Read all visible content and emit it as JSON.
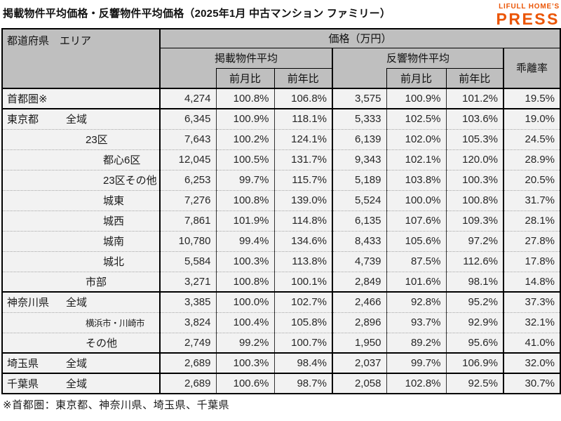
{
  "page": {
    "title": "掲載物件平均価格・反響物件平均価格（2025年1月 中古マンション ファミリー）",
    "footnote": "※首都圏：東京都、神奈川県、埼玉県、千葉県"
  },
  "logo": {
    "line1": "LIFULL HOME’S",
    "line2": "PRESS",
    "color": "#eb5505"
  },
  "colors": {
    "header_bg": "#bfbfbf",
    "row_bg": "#f2f2f2",
    "border": "#000000",
    "accent": "#eb5505"
  },
  "table": {
    "header": {
      "area_label": "都道府県　エリア",
      "price_group": "価格（万円）",
      "listed_group": "掲載物件平均",
      "inquiry_group": "反響物件平均",
      "divergence": "乖離率",
      "mom": "前月比",
      "yoy": "前年比"
    },
    "rows": [
      {
        "pref": "首都圏※",
        "area": "",
        "indent": 1,
        "group_start": true,
        "small": false,
        "listed": "4,274",
        "listed_mom": "100.8%",
        "listed_yoy": "106.8%",
        "inquiry": "3,575",
        "inquiry_mom": "100.9%",
        "inquiry_yoy": "101.2%",
        "divergence": "19.5%"
      },
      {
        "pref": "東京都",
        "area": "全域",
        "indent": 1,
        "group_start": true,
        "small": false,
        "listed": "6,345",
        "listed_mom": "100.9%",
        "listed_yoy": "118.1%",
        "inquiry": "5,333",
        "inquiry_mom": "102.5%",
        "inquiry_yoy": "103.6%",
        "divergence": "19.0%"
      },
      {
        "pref": "",
        "area": "23区",
        "indent": 2,
        "group_start": false,
        "small": false,
        "listed": "7,643",
        "listed_mom": "100.2%",
        "listed_yoy": "124.1%",
        "inquiry": "6,139",
        "inquiry_mom": "102.0%",
        "inquiry_yoy": "105.3%",
        "divergence": "24.5%"
      },
      {
        "pref": "",
        "area": "都心6区",
        "indent": 3,
        "group_start": false,
        "small": false,
        "listed": "12,045",
        "listed_mom": "100.5%",
        "listed_yoy": "131.7%",
        "inquiry": "9,343",
        "inquiry_mom": "102.1%",
        "inquiry_yoy": "120.0%",
        "divergence": "28.9%"
      },
      {
        "pref": "",
        "area": "23区その他",
        "indent": 3,
        "group_start": false,
        "small": false,
        "listed": "6,253",
        "listed_mom": "99.7%",
        "listed_yoy": "115.7%",
        "inquiry": "5,189",
        "inquiry_mom": "103.8%",
        "inquiry_yoy": "100.3%",
        "divergence": "20.5%"
      },
      {
        "pref": "",
        "area": "城東",
        "indent": 3,
        "group_start": false,
        "small": false,
        "listed": "7,276",
        "listed_mom": "100.8%",
        "listed_yoy": "139.0%",
        "inquiry": "5,524",
        "inquiry_mom": "100.0%",
        "inquiry_yoy": "100.8%",
        "divergence": "31.7%"
      },
      {
        "pref": "",
        "area": "城西",
        "indent": 3,
        "group_start": false,
        "small": false,
        "listed": "7,861",
        "listed_mom": "101.9%",
        "listed_yoy": "114.8%",
        "inquiry": "6,135",
        "inquiry_mom": "107.6%",
        "inquiry_yoy": "109.3%",
        "divergence": "28.1%"
      },
      {
        "pref": "",
        "area": "城南",
        "indent": 3,
        "group_start": false,
        "small": false,
        "listed": "10,780",
        "listed_mom": "99.4%",
        "listed_yoy": "134.6%",
        "inquiry": "8,433",
        "inquiry_mom": "105.6%",
        "inquiry_yoy": "97.2%",
        "divergence": "27.8%"
      },
      {
        "pref": "",
        "area": "城北",
        "indent": 3,
        "group_start": false,
        "small": false,
        "listed": "5,584",
        "listed_mom": "100.3%",
        "listed_yoy": "113.8%",
        "inquiry": "4,739",
        "inquiry_mom": "87.5%",
        "inquiry_yoy": "112.6%",
        "divergence": "17.8%"
      },
      {
        "pref": "",
        "area": "市部",
        "indent": 2,
        "group_start": false,
        "small": false,
        "listed": "3,271",
        "listed_mom": "100.8%",
        "listed_yoy": "100.1%",
        "inquiry": "2,849",
        "inquiry_mom": "101.6%",
        "inquiry_yoy": "98.1%",
        "divergence": "14.8%"
      },
      {
        "pref": "神奈川県",
        "area": "全域",
        "indent": 1,
        "group_start": true,
        "small": false,
        "listed": "3,385",
        "listed_mom": "100.0%",
        "listed_yoy": "102.7%",
        "inquiry": "2,466",
        "inquiry_mom": "92.8%",
        "inquiry_yoy": "95.2%",
        "divergence": "37.3%"
      },
      {
        "pref": "",
        "area": "横浜市・川崎市",
        "indent": 2,
        "group_start": false,
        "small": true,
        "listed": "3,824",
        "listed_mom": "100.4%",
        "listed_yoy": "105.8%",
        "inquiry": "2,896",
        "inquiry_mom": "93.7%",
        "inquiry_yoy": "92.9%",
        "divergence": "32.1%"
      },
      {
        "pref": "",
        "area": "その他",
        "indent": 2,
        "group_start": false,
        "small": false,
        "listed": "2,749",
        "listed_mom": "99.2%",
        "listed_yoy": "100.7%",
        "inquiry": "1,950",
        "inquiry_mom": "89.2%",
        "inquiry_yoy": "95.6%",
        "divergence": "41.0%"
      },
      {
        "pref": "埼玉県",
        "area": "全域",
        "indent": 1,
        "group_start": true,
        "small": false,
        "listed": "2,689",
        "listed_mom": "100.3%",
        "listed_yoy": "98.4%",
        "inquiry": "2,037",
        "inquiry_mom": "99.7%",
        "inquiry_yoy": "106.9%",
        "divergence": "32.0%"
      },
      {
        "pref": "千葉県",
        "area": "全域",
        "indent": 1,
        "group_start": true,
        "small": false,
        "listed": "2,689",
        "listed_mom": "100.6%",
        "listed_yoy": "98.7%",
        "inquiry": "2,058",
        "inquiry_mom": "102.8%",
        "inquiry_yoy": "92.5%",
        "divergence": "30.7%"
      }
    ]
  }
}
